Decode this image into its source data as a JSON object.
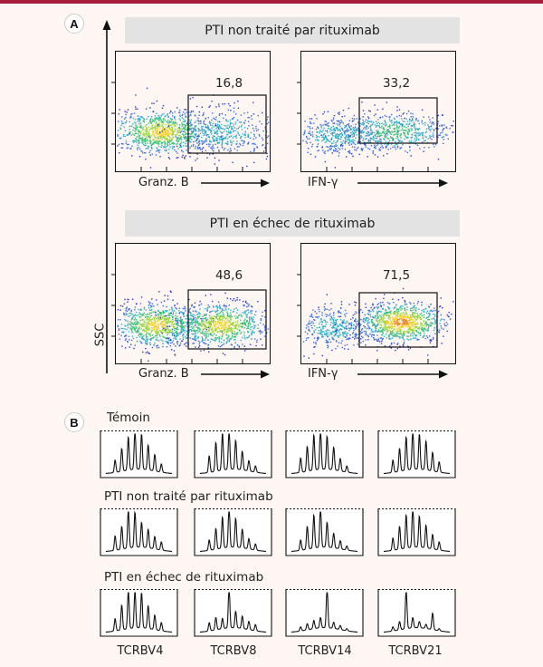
{
  "panel_a": {
    "label": "A",
    "y_axis_label": "SSC",
    "groups": [
      {
        "title": "PTI non traité par rituximab",
        "plots": [
          {
            "x_label": "Granz. B",
            "gate_percent": "16,8"
          },
          {
            "x_label": "IFN-γ",
            "gate_percent": "33,2"
          }
        ]
      },
      {
        "title": "PTI en échec de rituximab",
        "plots": [
          {
            "x_label": "Granz. B",
            "gate_percent": "48,6"
          },
          {
            "x_label": "IFN-γ",
            "gate_percent": "71,5"
          }
        ]
      }
    ]
  },
  "panel_b": {
    "label": "B",
    "groups": [
      {
        "label": "Témoin"
      },
      {
        "label": "PTI non traité par rituximab"
      },
      {
        "label": "PTI en échec de rituximab"
      }
    ],
    "columns": [
      "TCRBV4",
      "TCRBV8",
      "TCRBV14",
      "TCRBV21"
    ]
  },
  "colors": {
    "accent": "#a61f3a",
    "banner": "#e3e3e3",
    "density_low": "#2a3bd6",
    "density_high": "#e2231a"
  }
}
